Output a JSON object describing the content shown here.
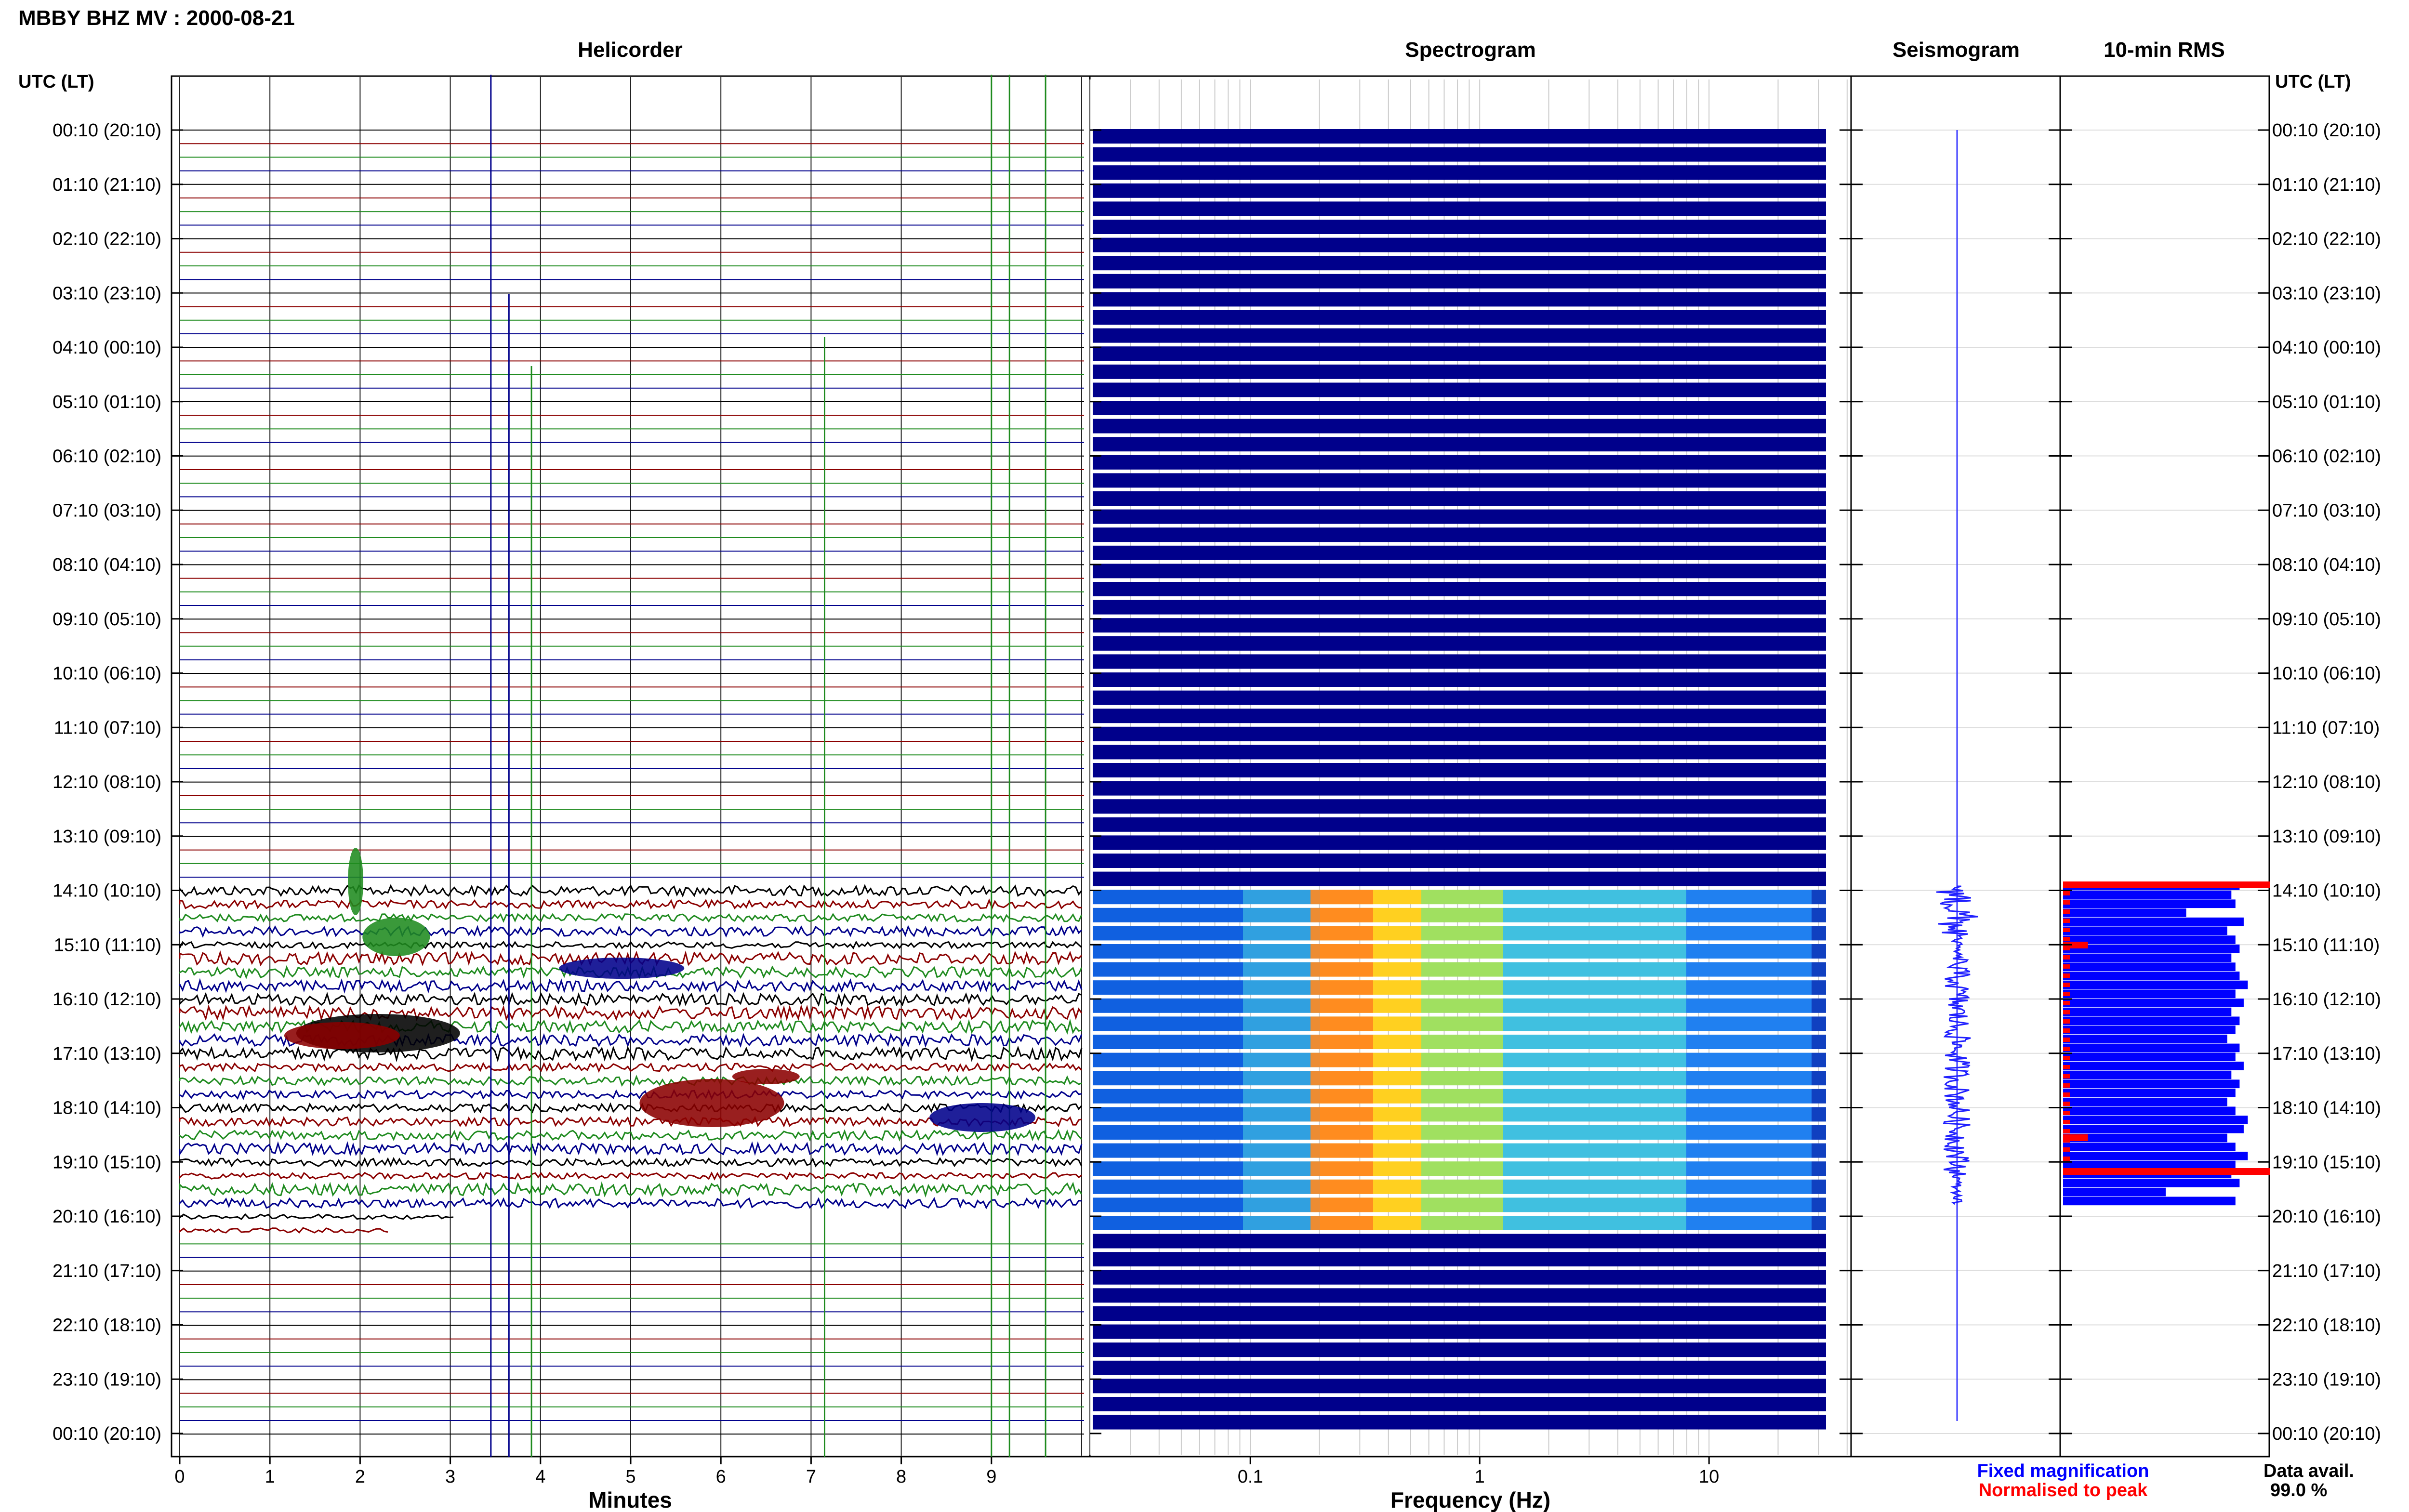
{
  "header": {
    "station_title": "MBBY BHZ MV : 2000-08-21",
    "utc_label_left": "UTC (LT)",
    "utc_label_right": "UTC (LT)"
  },
  "panels": {
    "helicorder": "Helicorder",
    "spectrogram": "Spectrogram",
    "seismogram": "Seismogram",
    "rms": "10-min RMS"
  },
  "axes": {
    "helicorder_xlabel": "Minutes",
    "spectrogram_xlabel": "Frequency (Hz)",
    "minute_ticks": [
      "0",
      "1",
      "2",
      "3",
      "4",
      "5",
      "6",
      "7",
      "8",
      "9"
    ],
    "freq_ticks": [
      {
        "value": 0.1,
        "label": "0.1"
      },
      {
        "value": 1,
        "label": "1"
      },
      {
        "value": 10,
        "label": "10"
      }
    ],
    "time_labels": [
      "00:10 (20:10)",
      "01:10 (21:10)",
      "02:10 (22:10)",
      "03:10 (23:10)",
      "04:10 (00:10)",
      "05:10 (01:10)",
      "06:10 (02:10)",
      "07:10 (03:10)",
      "08:10 (04:10)",
      "09:10 (05:10)",
      "10:10 (06:10)",
      "11:10 (07:10)",
      "12:10 (08:10)",
      "13:10 (09:10)",
      "14:10 (10:10)",
      "15:10 (11:10)",
      "16:10 (12:10)",
      "17:10 (13:10)",
      "18:10 (14:10)",
      "19:10 (15:10)",
      "20:10 (16:10)",
      "21:10 (17:10)",
      "22:10 (18:10)",
      "23:10 (19:10)",
      "00:10 (20:10)"
    ]
  },
  "legend": {
    "fixed": "Fixed magnification",
    "normalised": "Normalised to peak",
    "avail_label": "Data avail.",
    "avail_value": "99.0 %"
  },
  "colors": {
    "trace_cycle": [
      "#000000",
      "#8b0000",
      "#1f8b1f",
      "#00008b"
    ],
    "fixed": "#0000ff",
    "normalised": "#ff0000",
    "spectro_quiet": "#00008b"
  },
  "chart_data": {
    "type": "helicorder",
    "minutes_range": [
      0,
      10
    ],
    "frequency_range_hz": [
      0.02,
      50
    ],
    "frequency_scale": "log",
    "active_window_utc": [
      "14:10",
      "20:10"
    ],
    "spikes_minutes": [
      3.45,
      3.65,
      3.9,
      7.15,
      9.0,
      9.2,
      9.6
    ],
    "events": [
      {
        "minute": 2.2,
        "time": "17:10"
      },
      {
        "minute": 5.9,
        "time": "18:10"
      }
    ],
    "rms_red_rows": [
      "14:10",
      "15:10",
      "18:50",
      "19:10"
    ],
    "rms_widths_active": [
      0.86,
      0.82,
      0.84,
      0.6,
      0.88,
      0.8,
      0.84,
      0.86,
      0.82,
      0.84,
      0.86,
      0.9,
      0.84,
      0.88,
      0.82,
      0.86,
      0.84,
      0.8,
      0.86,
      0.84,
      0.88,
      0.82,
      0.86,
      0.84,
      0.8,
      0.84,
      0.9,
      0.88,
      0.8,
      0.84,
      0.9,
      0.84,
      0.82,
      0.86,
      0.5,
      0.84
    ]
  }
}
